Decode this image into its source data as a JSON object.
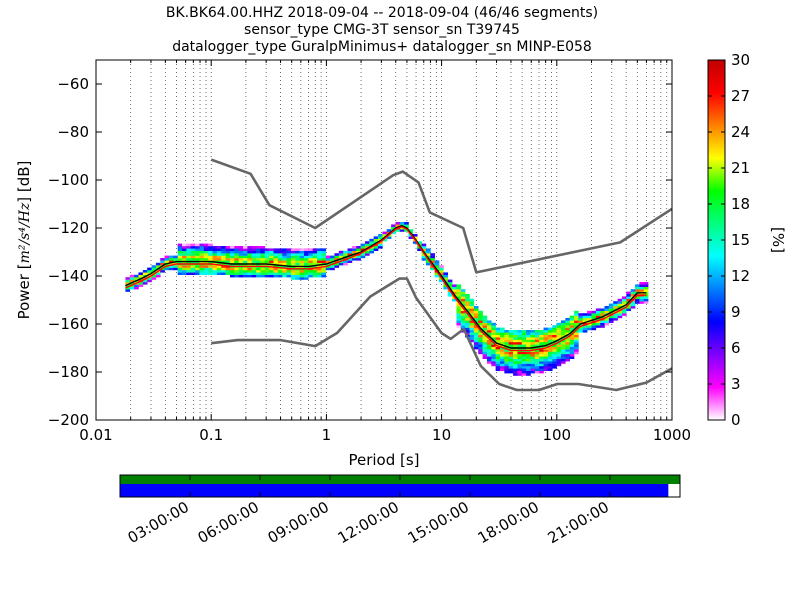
{
  "title": {
    "line1": "BK.BK64.00.HHZ   2018-09-04 -- 2018-09-04  (46/46 segments)",
    "line2": "sensor_type CMG-3T sensor_sn T39745",
    "line3": "datalogger_type GuralpMinimus+ datalogger_sn MINP-E058"
  },
  "chart_data": [
    {
      "type": "heatmap",
      "xlabel": "Period [s]",
      "ylabel_prefix": "Power [",
      "ylabel_suffix": "] [dB]",
      "x_scale": "log",
      "xlim": [
        0.01,
        1000
      ],
      "ylim": [
        -200,
        -50
      ],
      "x_ticks": [
        0.01,
        0.1,
        1,
        10,
        100,
        1000
      ],
      "x_tick_labels": [
        "0.01",
        "0.1",
        "1",
        "10",
        "100",
        "1000"
      ],
      "y_ticks": [
        -200,
        -180,
        -160,
        -140,
        -120,
        -100,
        -80,
        -60
      ],
      "y_tick_labels": [
        "−200",
        "−180",
        "−160",
        "−140",
        "−120",
        "−100",
        "−80",
        "−60"
      ],
      "grid": "vertical dotted at log decades and sub-decades",
      "colorbar": {
        "label": "[%]",
        "min": 0,
        "max": 30,
        "ticks": [
          0,
          3,
          6,
          9,
          12,
          15,
          18,
          21,
          24,
          27,
          30
        ],
        "tick_labels": [
          "0",
          "3",
          "6",
          "9",
          "12",
          "15",
          "18",
          "21",
          "24",
          "27",
          "30"
        ],
        "colormap": [
          "#ffffff",
          "#ff00ff",
          "#8000ff",
          "#0000ff",
          "#0080ff",
          "#00ffff",
          "#00ff80",
          "#00ff00",
          "#ffff00",
          "#ff8000",
          "#ff0000",
          "#c00000"
        ]
      },
      "series": [
        {
          "kind": "noise_model_high",
          "color": "#666666",
          "x": [
            0.1,
            0.22,
            0.32,
            0.8,
            3.8,
            4.6,
            6.3,
            7.9,
            15.4,
            20,
            354.8,
            1000
          ],
          "y": [
            -91.5,
            -97.4,
            -110.5,
            -120,
            -98,
            -96.5,
            -101,
            -113.5,
            -120,
            -138.5,
            -126,
            -112
          ]
        },
        {
          "kind": "noise_model_low",
          "color": "#666666",
          "x": [
            0.1,
            0.17,
            0.4,
            0.8,
            1.24,
            2.4,
            4.3,
            5,
            6,
            10,
            12,
            15.6,
            21.9,
            31.6,
            45,
            70,
            101,
            154,
            328,
            600,
            1000
          ],
          "y": [
            -168,
            -166.7,
            -166.7,
            -169.2,
            -163.7,
            -148.6,
            -141.1,
            -141.1,
            -149,
            -163.8,
            -166.2,
            -162.1,
            -177.5,
            -185,
            -187.5,
            -187.5,
            -185,
            -185,
            -187.5,
            -184.4,
            -178.5
          ]
        },
        {
          "kind": "mode",
          "color": "#000000",
          "x": [
            0.018,
            0.025,
            0.03,
            0.04,
            0.05,
            0.07,
            0.1,
            0.15,
            0.2,
            0.3,
            0.5,
            0.7,
            1,
            1.5,
            2,
            3,
            4,
            4.5,
            5,
            6,
            7,
            10,
            13,
            17,
            22,
            30,
            40,
            60,
            80,
            100,
            130,
            160,
            250,
            400,
            500,
            600
          ],
          "y": [
            -144,
            -141,
            -139,
            -135,
            -134,
            -134,
            -134,
            -135,
            -135,
            -135,
            -136,
            -136,
            -135,
            -132,
            -130,
            -125,
            -120,
            -119,
            -120,
            -125,
            -130,
            -140,
            -148,
            -155,
            -162,
            -168,
            -170,
            -170,
            -169,
            -167,
            -164,
            -160,
            -157,
            -152,
            -147,
            -147
          ]
        },
        {
          "kind": "mean",
          "color": "#ff0000",
          "x": [
            0.018,
            0.025,
            0.03,
            0.04,
            0.05,
            0.07,
            0.1,
            0.15,
            0.2,
            0.3,
            0.5,
            0.7,
            1,
            1.5,
            2,
            3,
            4,
            4.5,
            5,
            6,
            7,
            10,
            13,
            17,
            22,
            30,
            40,
            60,
            80,
            100,
            130,
            160,
            250,
            400,
            500,
            600
          ],
          "y": [
            -145,
            -142,
            -140,
            -136,
            -135,
            -135,
            -135,
            -136,
            -136,
            -136,
            -137,
            -137,
            -136,
            -133,
            -130.5,
            -125.5,
            -120.5,
            -119.5,
            -120.5,
            -125.5,
            -130.5,
            -141,
            -149,
            -156,
            -163,
            -169,
            -171,
            -171,
            -170,
            -168,
            -165,
            -161,
            -158,
            -153,
            -148,
            -148
          ]
        }
      ]
    },
    {
      "type": "timeline",
      "x_tick_labels": [
        "03:00:00",
        "06:00:00",
        "09:00:00",
        "12:00:00",
        "15:00:00",
        "18:00:00",
        "21:00:00"
      ],
      "x_tick_hours": [
        3,
        6,
        9,
        12,
        15,
        18,
        21
      ],
      "xlim_hours": [
        0,
        24
      ],
      "data_coverage_hours": [
        0,
        24
      ],
      "psd_coverage_hours": [
        0,
        23.5
      ],
      "data_color": "#008000",
      "psd_color": "#0000ff"
    }
  ]
}
